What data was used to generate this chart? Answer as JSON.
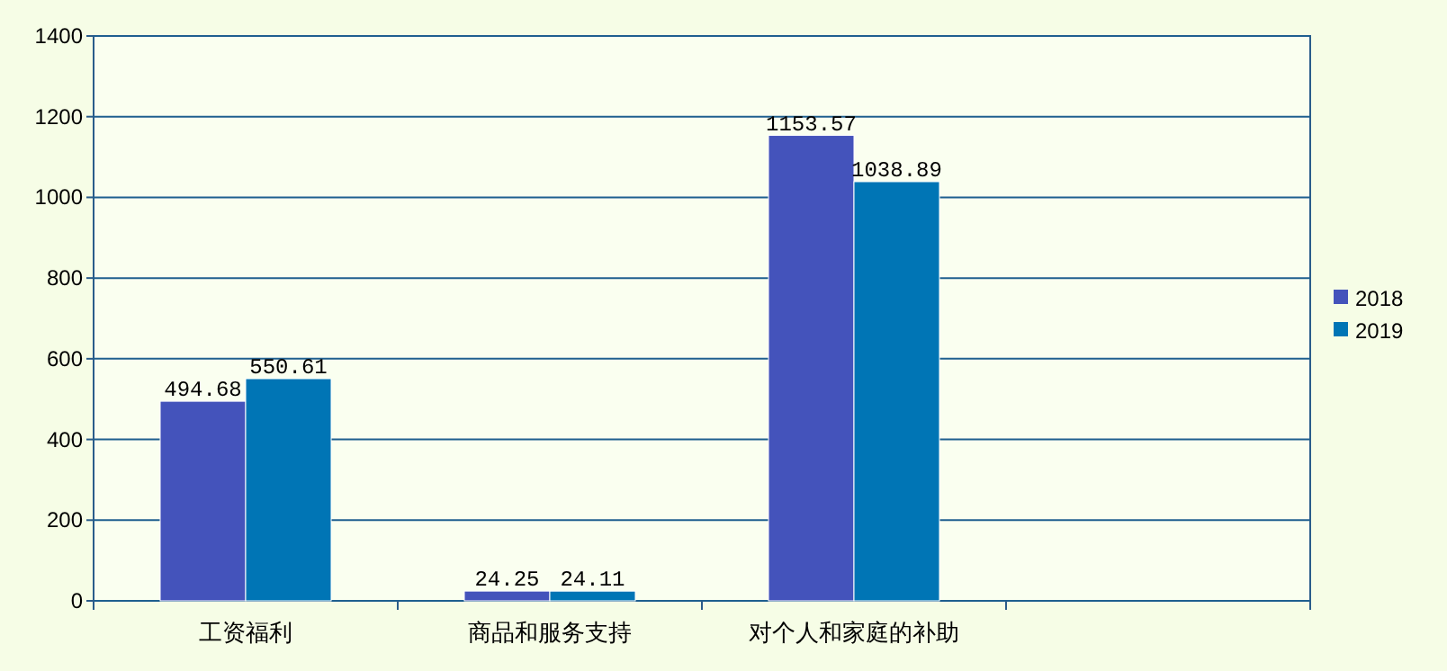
{
  "chart_data": {
    "type": "bar",
    "categories": [
      "工资福利",
      "商品和服务支持",
      "对个人和家庭的补助",
      null
    ],
    "series": [
      {
        "name": "2018",
        "color": "#4453bb",
        "values": [
          494.68,
          24.25,
          1153.57,
          null
        ]
      },
      {
        "name": "2019",
        "color": "#0075b5",
        "values": [
          550.61,
          24.11,
          1038.89,
          null
        ]
      }
    ],
    "ylim": [
      0,
      1400
    ],
    "yticks": [
      0,
      200,
      400,
      600,
      800,
      1000,
      1200,
      1400
    ],
    "grid": "y",
    "legend": "right",
    "data_labels": true
  }
}
